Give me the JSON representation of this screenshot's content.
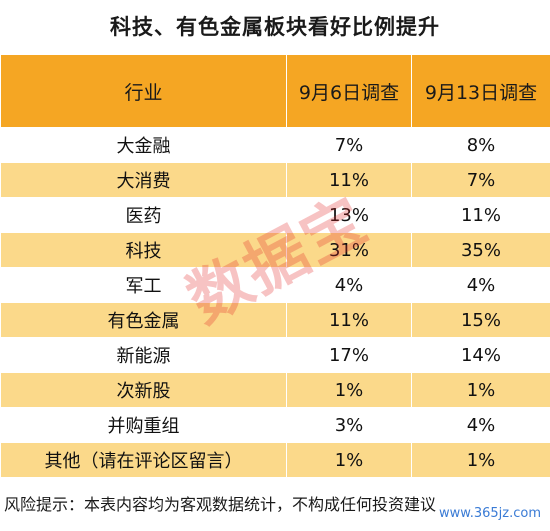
{
  "title": "科技、有色金属板块看好比例提升",
  "table": {
    "headers": [
      "行业",
      "9月6日调查",
      "9月13日调查"
    ],
    "rows": [
      [
        "大金融",
        "7%",
        "8%"
      ],
      [
        "大消费",
        "11%",
        "7%"
      ],
      [
        "医药",
        "13%",
        "11%"
      ],
      [
        "科技",
        "31%",
        "35%"
      ],
      [
        "军工",
        "4%",
        "4%"
      ],
      [
        "有色金属",
        "11%",
        "15%"
      ],
      [
        "新能源",
        "17%",
        "14%"
      ],
      [
        "次新股",
        "1%",
        "1%"
      ],
      [
        "并购重组",
        "3%",
        "4%"
      ],
      [
        "其他（请在评论区留言）",
        "1%",
        "1%"
      ]
    ]
  },
  "footer": "风险提示：本表内容均为客观数据统计，不构成任何投资建议",
  "watermark": "数据宝",
  "site_logo": "www.365jz.com",
  "colors": {
    "header_bg": "#f5a623",
    "stripe_bg": "#fbd98a",
    "watermark": "#e12828"
  }
}
